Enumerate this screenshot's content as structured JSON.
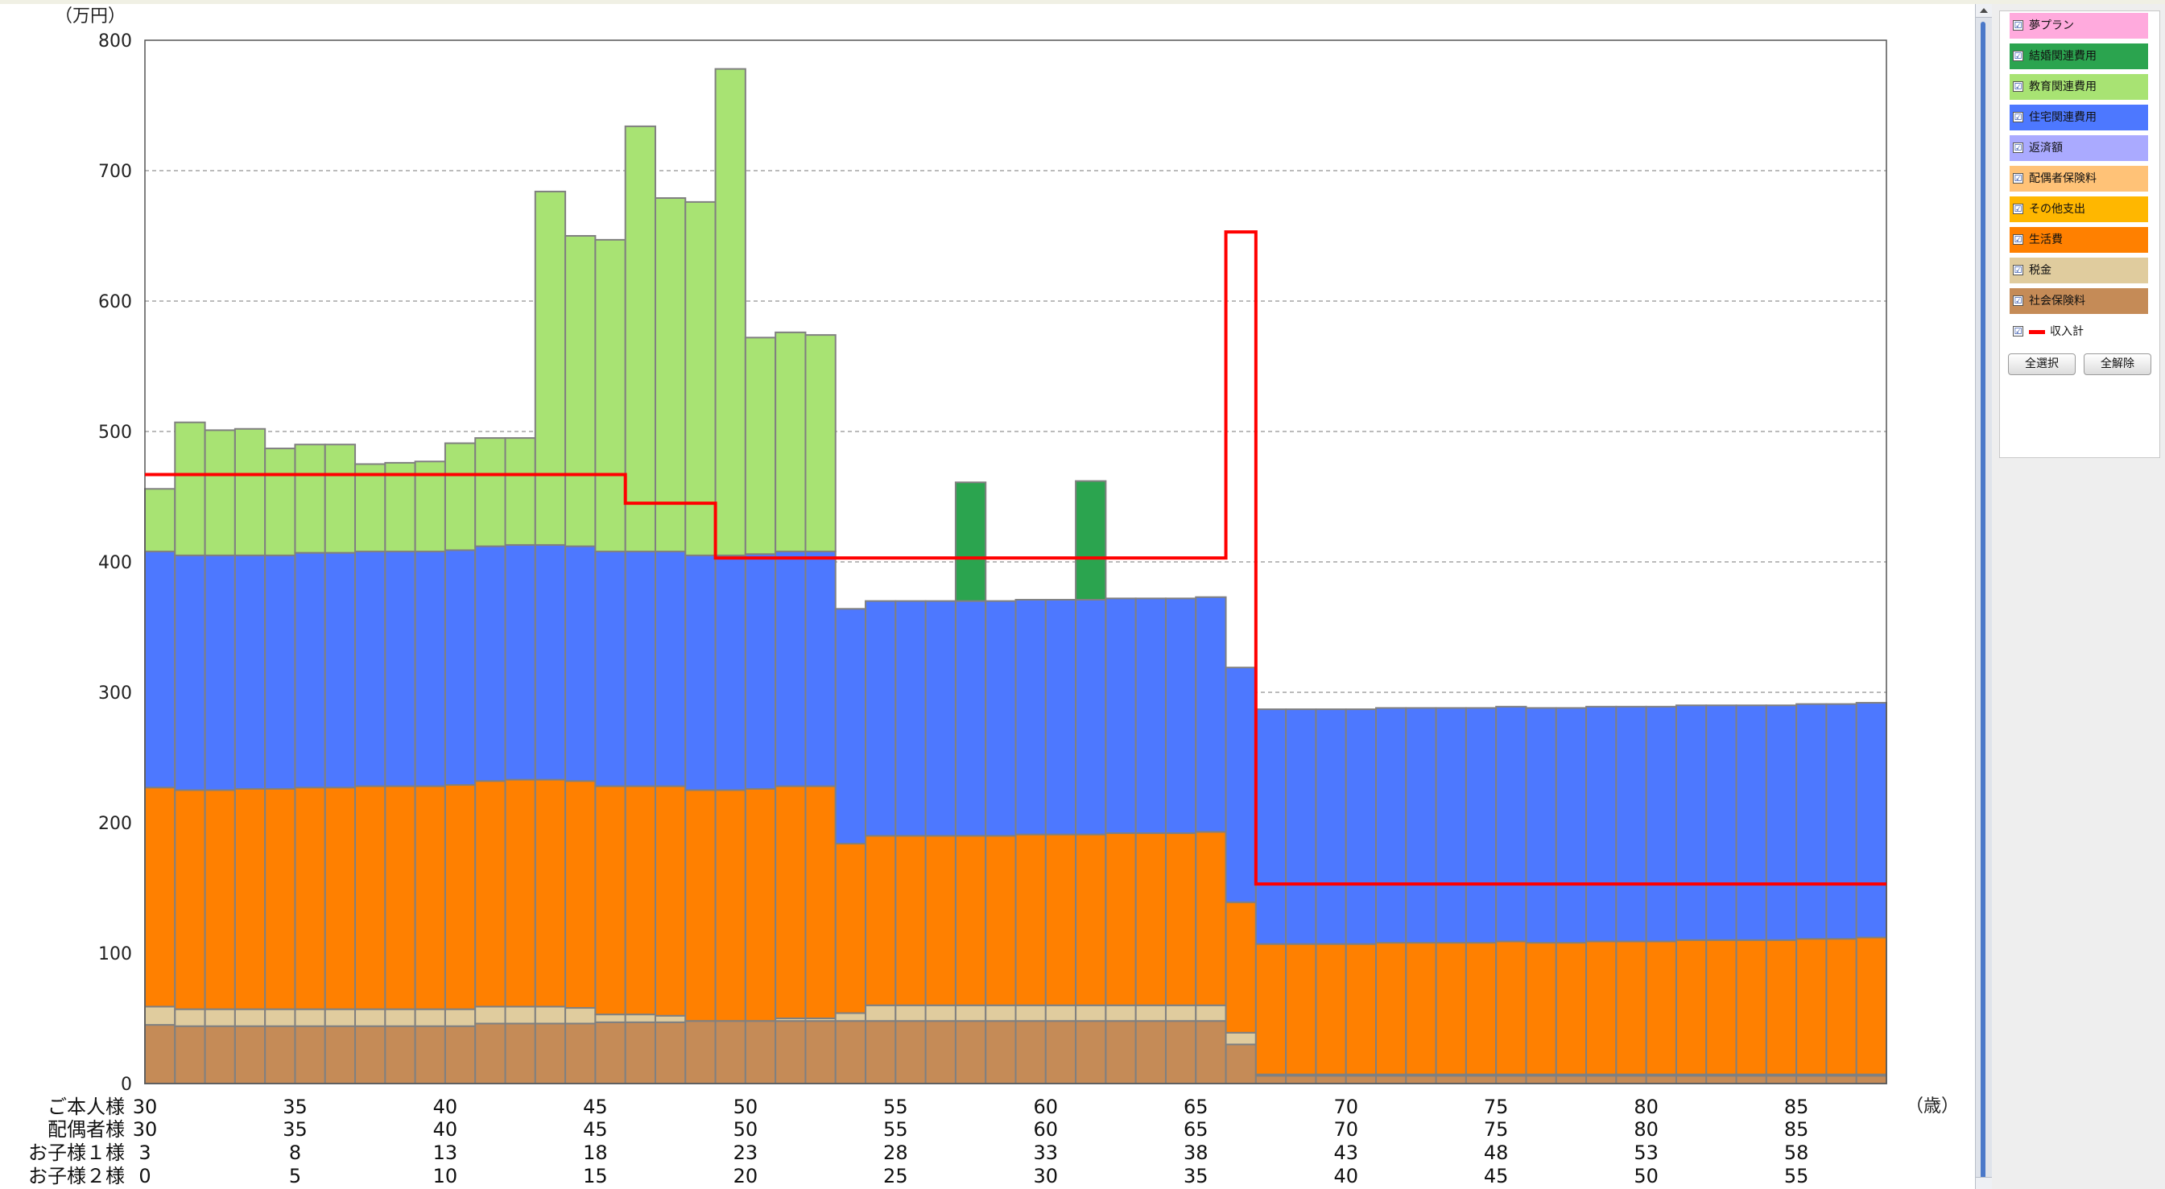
{
  "legend": {
    "items": [
      {
        "label": "夢プラン",
        "color": "#ffaadd",
        "checked": "☑"
      },
      {
        "label": "結婚関連費用",
        "color": "#2ba44f",
        "checked": "☑"
      },
      {
        "label": "教育関連費用",
        "color": "#a8e373",
        "checked": "☑"
      },
      {
        "label": "住宅関連費用",
        "color": "#4d78ff",
        "checked": "☑"
      },
      {
        "label": "返済額",
        "color": "#aaaaff",
        "checked": "☑"
      },
      {
        "label": "配偶者保険料",
        "color": "#ffc277",
        "checked": "☑"
      },
      {
        "label": "その他支出",
        "color": "#ffb700",
        "checked": "☑"
      },
      {
        "label": "生活費",
        "color": "#ff8000",
        "checked": "☑"
      },
      {
        "label": "税金",
        "color": "#e0cc9e",
        "checked": "☑"
      },
      {
        "label": "社会保険料",
        "color": "#c58b57",
        "checked": "☑"
      }
    ],
    "income_item": {
      "label": "収入計",
      "color": "#ff0000",
      "checked": "☑"
    },
    "select_all_label": "全選択",
    "clear_all_label": "全解除"
  },
  "chart_data": {
    "type": "bar",
    "stacked": true,
    "yunit_label": "（万円）",
    "xunit_label": "（歳）",
    "ylim": [
      0,
      800
    ],
    "yticks": [
      0,
      100,
      200,
      300,
      400,
      500,
      600,
      700,
      800
    ],
    "grid": "horizontal dashed",
    "legend_position": "right",
    "categories": [
      30,
      31,
      32,
      33,
      34,
      35,
      36,
      37,
      38,
      39,
      40,
      41,
      42,
      43,
      44,
      45,
      46,
      47,
      48,
      49,
      50,
      51,
      52,
      53,
      54,
      55,
      56,
      57,
      58,
      59,
      60,
      61,
      62,
      63,
      64,
      65,
      66,
      67,
      68,
      69,
      70,
      71,
      72,
      73,
      74,
      75,
      76,
      77,
      78,
      79,
      80,
      81,
      82,
      83,
      84,
      85,
      86,
      87
    ],
    "series": [
      {
        "name": "社会保険料",
        "color": "#c58b57",
        "values": [
          45,
          44,
          44,
          44,
          44,
          44,
          44,
          44,
          44,
          44,
          44,
          46,
          46,
          46,
          46,
          47,
          47,
          47,
          48,
          48,
          48,
          48,
          48,
          48,
          48,
          48,
          48,
          48,
          48,
          48,
          48,
          48,
          48,
          48,
          48,
          48,
          30,
          6,
          6,
          6,
          6,
          6,
          6,
          6,
          6,
          6,
          6,
          6,
          6,
          6,
          6,
          6,
          6,
          6,
          6,
          6,
          6,
          6
        ]
      },
      {
        "name": "税金",
        "color": "#e0cc9e",
        "values": [
          14,
          13,
          13,
          13,
          13,
          13,
          13,
          13,
          13,
          13,
          13,
          13,
          13,
          13,
          12,
          6,
          6,
          5,
          0,
          0,
          0,
          2,
          2,
          6,
          12,
          12,
          12,
          12,
          12,
          12,
          12,
          12,
          12,
          12,
          12,
          12,
          9,
          1,
          1,
          1,
          1,
          1,
          1,
          1,
          1,
          1,
          1,
          1,
          1,
          1,
          1,
          1,
          1,
          1,
          1,
          1,
          1,
          1
        ]
      },
      {
        "name": "生活費",
        "color": "#ff8000",
        "values": [
          168,
          168,
          168,
          169,
          169,
          170,
          170,
          171,
          171,
          171,
          172,
          173,
          174,
          174,
          174,
          175,
          175,
          176,
          177,
          177,
          178,
          178,
          178,
          130,
          130,
          130,
          130,
          130,
          130,
          131,
          131,
          131,
          132,
          132,
          132,
          133,
          100,
          100,
          100,
          100,
          100,
          101,
          101,
          101,
          101,
          102,
          101,
          101,
          102,
          102,
          102,
          103,
          103,
          103,
          103,
          104,
          104,
          105
        ]
      },
      {
        "name": "住宅関連費用",
        "color": "#4d78ff",
        "values": [
          181,
          180,
          180,
          179,
          179,
          180,
          180,
          180,
          180,
          180,
          180,
          180,
          180,
          180,
          180,
          180,
          180,
          180,
          180,
          180,
          180,
          180,
          180,
          180,
          180,
          180,
          180,
          180,
          180,
          180,
          180,
          180,
          180,
          180,
          180,
          180,
          180,
          180,
          180,
          180,
          180,
          180,
          180,
          180,
          180,
          180,
          180,
          180,
          180,
          180,
          180,
          180,
          180,
          180,
          180,
          180,
          180,
          180
        ]
      },
      {
        "name": "結婚関連費用",
        "color": "#2ba44f",
        "values": [
          0,
          0,
          0,
          0,
          0,
          0,
          0,
          0,
          0,
          0,
          0,
          0,
          0,
          0,
          0,
          0,
          0,
          0,
          0,
          0,
          0,
          0,
          0,
          0,
          0,
          0,
          0,
          91,
          0,
          0,
          0,
          91,
          0,
          0,
          0,
          0,
          0,
          0,
          0,
          0,
          0,
          0,
          0,
          0,
          0,
          0,
          0,
          0,
          0,
          0,
          0,
          0,
          0,
          0,
          0,
          0,
          0,
          0
        ]
      },
      {
        "name": "教育関連費用",
        "color": "#a8e373",
        "values": [
          48,
          102,
          96,
          97,
          82,
          83,
          83,
          67,
          68,
          69,
          82,
          83,
          82,
          271,
          238,
          239,
          326,
          271,
          271,
          373,
          166,
          168,
          166,
          0,
          0,
          0,
          0,
          0,
          0,
          0,
          0,
          0,
          0,
          0,
          0,
          0,
          0,
          0,
          0,
          0,
          0,
          0,
          0,
          0,
          0,
          0,
          0,
          0,
          0,
          0,
          0,
          0,
          0,
          0,
          0,
          0,
          0,
          0
        ]
      }
    ],
    "income_line": {
      "name": "収入計",
      "color": "#ff0000",
      "values": [
        467,
        467,
        467,
        467,
        467,
        467,
        467,
        467,
        467,
        467,
        467,
        467,
        467,
        467,
        467,
        467,
        445,
        445,
        445,
        403,
        403,
        403,
        403,
        403,
        403,
        403,
        403,
        403,
        403,
        403,
        403,
        403,
        403,
        403,
        403,
        403,
        653,
        153,
        153,
        153,
        153,
        153,
        153,
        153,
        153,
        153,
        153,
        153,
        153,
        153,
        153,
        153,
        153,
        153,
        153,
        153,
        153,
        153
      ]
    },
    "row_labels": [
      {
        "label": "ご本人様",
        "ages": [
          "30",
          "35",
          "40",
          "45",
          "50",
          "55",
          "60",
          "65",
          "70",
          "75",
          "80",
          "85"
        ]
      },
      {
        "label": "配偶者様",
        "ages": [
          "30",
          "35",
          "40",
          "45",
          "50",
          "55",
          "60",
          "65",
          "70",
          "75",
          "80",
          "85"
        ]
      },
      {
        "label": "お子様１様",
        "ages": [
          "3",
          "8",
          "13",
          "18",
          "23",
          "28",
          "33",
          "38",
          "43",
          "48",
          "53",
          "58"
        ]
      },
      {
        "label": "お子様２様",
        "ages": [
          "0",
          "5",
          "10",
          "15",
          "20",
          "25",
          "30",
          "35",
          "40",
          "45",
          "50",
          "55"
        ]
      }
    ]
  }
}
